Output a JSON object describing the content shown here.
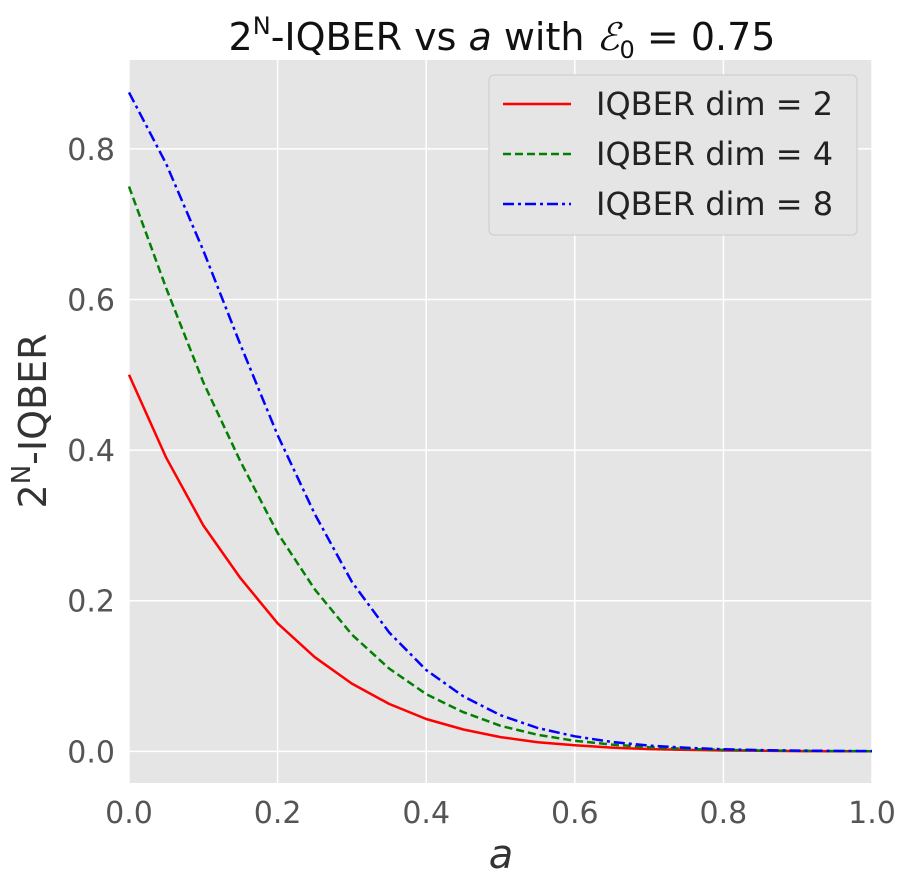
{
  "chart_data": {
    "type": "line",
    "title": {
      "prefix": "2",
      "prefix_sup": "N",
      "middle": "-IQBER vs ",
      "variable": "a",
      "with": " with ",
      "epsilon": "ℰ",
      "epsilon_sub": "0",
      "value": " = 0.75"
    },
    "xlabel": "a",
    "ylabel": {
      "base": "2",
      "sup": "N",
      "rest": "-IQBER"
    },
    "xlim": [
      0.0,
      1.0
    ],
    "ylim": [
      -0.042,
      0.918
    ],
    "xticks": [
      0.0,
      0.2,
      0.4,
      0.6,
      0.8,
      1.0
    ],
    "xtick_labels": [
      "0.0",
      "0.2",
      "0.4",
      "0.6",
      "0.8",
      "1.0"
    ],
    "yticks": [
      0.0,
      0.2,
      0.4,
      0.6,
      0.8
    ],
    "ytick_labels": [
      "0.0",
      "0.2",
      "0.4",
      "0.6",
      "0.8"
    ],
    "grid": true,
    "legend_position": "top-right",
    "x": [
      0.0,
      0.05,
      0.1,
      0.15,
      0.2,
      0.25,
      0.3,
      0.35,
      0.4,
      0.45,
      0.5,
      0.55,
      0.6,
      0.65,
      0.7,
      0.75,
      0.8,
      0.85,
      0.9,
      0.95,
      1.0
    ],
    "series": [
      {
        "name": "IQBER dim = 2",
        "color": "#ff0000",
        "dash": "solid",
        "values": [
          0.5,
          0.39,
          0.3,
          0.23,
          0.17,
          0.125,
          0.09,
          0.063,
          0.043,
          0.029,
          0.019,
          0.012,
          0.008,
          0.005,
          0.003,
          0.002,
          0.0012,
          0.0007,
          0.0004,
          0.0002,
          0.0001
        ]
      },
      {
        "name": "IQBER dim = 4",
        "color": "#008000",
        "dash": "dashed",
        "values": [
          0.75,
          0.615,
          0.49,
          0.385,
          0.29,
          0.215,
          0.155,
          0.11,
          0.076,
          0.052,
          0.034,
          0.022,
          0.014,
          0.009,
          0.0055,
          0.0033,
          0.002,
          0.0012,
          0.0007,
          0.0004,
          0.0002
        ]
      },
      {
        "name": "IQBER dim = 8",
        "color": "#0000ff",
        "dash": "dashdot",
        "values": [
          0.875,
          0.78,
          0.665,
          0.54,
          0.42,
          0.315,
          0.225,
          0.158,
          0.108,
          0.073,
          0.048,
          0.031,
          0.02,
          0.0125,
          0.0077,
          0.0047,
          0.0028,
          0.0017,
          0.001,
          0.0006,
          0.0003
        ]
      }
    ]
  }
}
